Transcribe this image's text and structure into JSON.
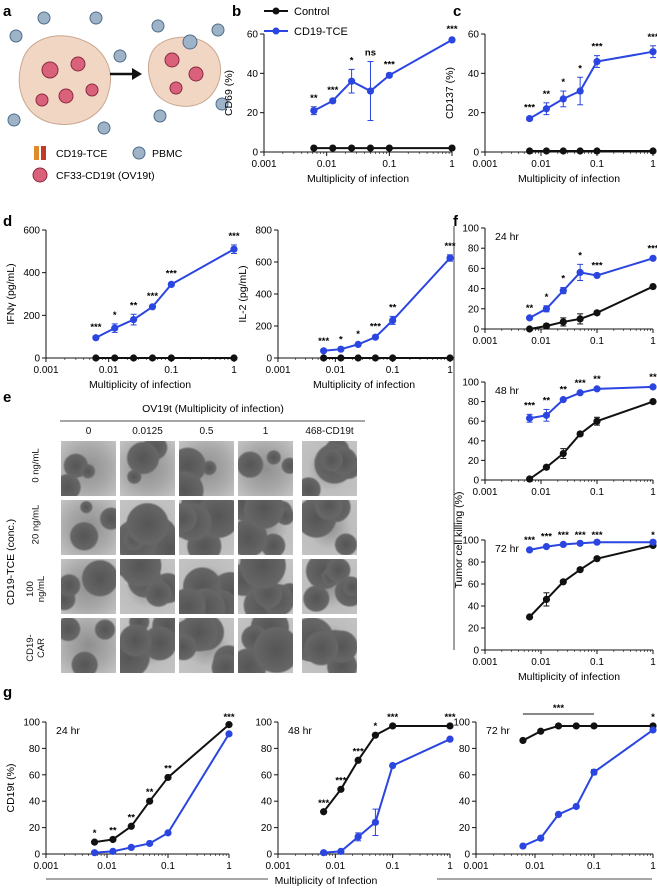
{
  "colors": {
    "control": "#111111",
    "tce": "#2a45e0",
    "axis": "#111111",
    "cell": "#f2d6c4"
  },
  "panel_labels": {
    "a": "a",
    "b": "b",
    "c": "c",
    "d": "d",
    "e": "e",
    "f": "f",
    "g": "g"
  },
  "schematic": {
    "legend": [
      {
        "icon": "bispecific-antibody-icon",
        "label": "CD19-TCE"
      },
      {
        "icon": "pbmc-icon",
        "label": "PBMC"
      },
      {
        "icon": "virus-icon",
        "label": "CF33-CD19t (OV19t)"
      }
    ]
  },
  "legend": {
    "control": "Control",
    "tce": "CD19-TCE"
  },
  "micrographs": {
    "title": "OV19t (Multiplicity of infection)",
    "columns": [
      "0",
      "0.0125",
      "0.5",
      "1",
      "468-CD19t"
    ],
    "rows": [
      "0 ng/mL",
      "20 ng/mL",
      "100 ng/mL",
      "CD19-\nCAR"
    ],
    "row_group_label": "CD19-TCE (conc.)"
  },
  "shared_labels": {
    "f_ylabel": "Tumor cell killing (%)",
    "g_xlabel": "Multiplicity of Infection"
  },
  "chart_data": [
    {
      "id": "b",
      "type": "line",
      "xscale": "log",
      "xlim": [
        0.001,
        1
      ],
      "ylim": [
        0,
        60
      ],
      "xticks": [
        "0.001",
        "0.01",
        "0.1",
        "1"
      ],
      "yticks": [
        0,
        20,
        40,
        60
      ],
      "xlabel": "Multiplicity of infection",
      "ylabel": "CD69 (%)",
      "x": [
        0.00625,
        0.0125,
        0.025,
        0.05,
        0.1,
        1
      ],
      "series": [
        {
          "name": "Control",
          "values": [
            2,
            2,
            2,
            2,
            2,
            2
          ],
          "err": [
            0,
            0,
            0,
            0,
            0,
            0
          ]
        },
        {
          "name": "CD19-TCE",
          "values": [
            21,
            26,
            36,
            31,
            39,
            57
          ],
          "err": [
            2,
            1,
            6,
            15,
            1,
            1
          ]
        }
      ],
      "annotations": [
        "**",
        "***",
        "*",
        "ns",
        "***",
        "***"
      ]
    },
    {
      "id": "c",
      "type": "line",
      "xscale": "log",
      "xlim": [
        0.001,
        1
      ],
      "ylim": [
        0,
        60
      ],
      "xticks": [
        "0.001",
        "0.01",
        "0.1",
        "1"
      ],
      "yticks": [
        0,
        20,
        40,
        60
      ],
      "xlabel": "Multiplicity of infection",
      "ylabel": "CD137 (%)",
      "x": [
        0.00625,
        0.0125,
        0.025,
        0.05,
        0.1,
        1
      ],
      "series": [
        {
          "name": "Control",
          "values": [
            0.5,
            0.5,
            0.5,
            0.5,
            0.5,
            0.5
          ],
          "err": [
            0,
            0,
            0,
            0,
            0,
            0
          ]
        },
        {
          "name": "CD19-TCE",
          "values": [
            17,
            22,
            27,
            31,
            46,
            51
          ],
          "err": [
            1,
            3,
            4,
            7,
            3,
            3
          ]
        }
      ],
      "annotations": [
        "***",
        "**",
        "*",
        "*",
        "***",
        "***"
      ]
    },
    {
      "id": "d1",
      "type": "line",
      "xscale": "log",
      "xlim": [
        0.001,
        1
      ],
      "ylim": [
        0,
        600
      ],
      "xticks": [
        "0.001",
        "0.01",
        "0.1",
        "1"
      ],
      "yticks": [
        0,
        200,
        400,
        600
      ],
      "xlabel": "Multiplicity of infection",
      "ylabel": "IFNγ (pg/mL)",
      "x": [
        0.00625,
        0.0125,
        0.025,
        0.05,
        0.1,
        1
      ],
      "series": [
        {
          "name": "Control",
          "values": [
            0,
            0,
            0,
            0,
            0,
            0
          ],
          "err": [
            0,
            0,
            0,
            0,
            0,
            0
          ]
        },
        {
          "name": "CD19-TCE",
          "values": [
            95,
            140,
            180,
            240,
            345,
            510
          ],
          "err": [
            8,
            20,
            25,
            8,
            8,
            20
          ]
        }
      ],
      "annotations": [
        "***",
        "*",
        "**",
        "***",
        "***",
        "***"
      ]
    },
    {
      "id": "d2",
      "type": "line",
      "xscale": "log",
      "xlim": [
        0.001,
        1
      ],
      "ylim": [
        0,
        800
      ],
      "xticks": [
        "0.001",
        "0.01",
        "0.1",
        "1"
      ],
      "yticks": [
        0,
        200,
        400,
        600,
        800
      ],
      "xlabel": "Multiplicity of infection",
      "ylabel": "IL-2 (pg/mL)",
      "x": [
        0.00625,
        0.0125,
        0.025,
        0.05,
        0.1,
        1
      ],
      "series": [
        {
          "name": "Control",
          "values": [
            0,
            0,
            0,
            0,
            0,
            0
          ],
          "err": [
            0,
            0,
            0,
            0,
            0,
            0
          ]
        },
        {
          "name": "CD19-TCE",
          "values": [
            45,
            55,
            85,
            130,
            235,
            625
          ],
          "err": [
            5,
            5,
            8,
            10,
            25,
            20
          ]
        }
      ],
      "annotations": [
        "***",
        "*",
        "*",
        "***",
        "**",
        "***"
      ]
    },
    {
      "id": "f1",
      "type": "line",
      "xscale": "log",
      "xlim": [
        0.001,
        1
      ],
      "ylim": [
        0,
        100
      ],
      "xticks": [
        "0.001",
        "0.01",
        "0.1",
        "1"
      ],
      "yticks": [
        0,
        20,
        40,
        60,
        80,
        100
      ],
      "title": "24 hr",
      "xlabel": "",
      "ylabel": "",
      "x": [
        0.00625,
        0.0125,
        0.025,
        0.05,
        0.1,
        1
      ],
      "series": [
        {
          "name": "Control",
          "values": [
            0,
            3,
            7,
            10,
            16,
            42
          ],
          "err": [
            0,
            2,
            4,
            5,
            1,
            1
          ]
        },
        {
          "name": "CD19-TCE",
          "values": [
            11,
            20,
            38,
            56,
            53,
            70
          ],
          "err": [
            1,
            3,
            3,
            8,
            1,
            1
          ]
        }
      ],
      "annotations": [
        "**",
        "*",
        "*",
        "*",
        "***",
        "***"
      ]
    },
    {
      "id": "f2",
      "type": "line",
      "xscale": "log",
      "xlim": [
        0.001,
        1
      ],
      "ylim": [
        0,
        100
      ],
      "xticks": [
        "0.001",
        "0.01",
        "0.1",
        "1"
      ],
      "yticks": [
        0,
        20,
        40,
        60,
        80,
        100
      ],
      "title": "48 hr",
      "xlabel": "",
      "ylabel": "",
      "x": [
        0.00625,
        0.0125,
        0.025,
        0.05,
        0.1,
        1
      ],
      "series": [
        {
          "name": "Control",
          "values": [
            1,
            13,
            27,
            47,
            60,
            80
          ],
          "err": [
            0,
            2,
            5,
            2,
            4,
            1
          ]
        },
        {
          "name": "CD19-TCE",
          "values": [
            63,
            66,
            82,
            89,
            93,
            95
          ],
          "err": [
            4,
            6,
            1,
            1,
            1,
            1
          ]
        }
      ],
      "annotations": [
        "***",
        "**",
        "**",
        "***",
        "**",
        "**"
      ]
    },
    {
      "id": "f3",
      "type": "line",
      "xscale": "log",
      "xlim": [
        0.001,
        1
      ],
      "ylim": [
        0,
        100
      ],
      "xticks": [
        "0.001",
        "0.01",
        "0.1",
        "1"
      ],
      "yticks": [
        0,
        20,
        40,
        60,
        80,
        100
      ],
      "title": "72 hr",
      "xlabel": "Multiplicity of infection",
      "ylabel": "",
      "x": [
        0.00625,
        0.0125,
        0.025,
        0.05,
        0.1,
        1
      ],
      "series": [
        {
          "name": "Control",
          "values": [
            30,
            46,
            62,
            73,
            83,
            95
          ],
          "err": [
            0,
            6,
            1,
            1,
            1,
            1
          ]
        },
        {
          "name": "CD19-TCE",
          "values": [
            91,
            94,
            96,
            97,
            98,
            98
          ],
          "err": [
            1,
            1,
            1,
            1,
            1,
            1
          ]
        }
      ],
      "annotations": [
        "***",
        "***",
        "***",
        "***",
        "***",
        "*"
      ]
    },
    {
      "id": "g1",
      "type": "line",
      "xscale": "log",
      "xlim": [
        0.001,
        1
      ],
      "ylim": [
        0,
        100
      ],
      "xticks": [
        "0.001",
        "0.01",
        "0.1",
        "1"
      ],
      "yticks": [
        0,
        20,
        40,
        60,
        80,
        100
      ],
      "title": "24 hr",
      "xlabel": "",
      "ylabel": "CD19t (%)",
      "x": [
        0.00625,
        0.0125,
        0.025,
        0.05,
        0.1,
        1
      ],
      "series": [
        {
          "name": "Control",
          "values": [
            9,
            11,
            21,
            40,
            58,
            98
          ],
          "err": [
            0,
            0,
            0,
            0,
            0,
            0
          ]
        },
        {
          "name": "CD19-TCE",
          "values": [
            1,
            2,
            5,
            8,
            16,
            91
          ],
          "err": [
            0,
            0,
            0,
            0,
            0,
            0
          ]
        }
      ],
      "annotations": [
        "*",
        "**",
        "**",
        "**",
        "**",
        "***"
      ]
    },
    {
      "id": "g2",
      "type": "line",
      "xscale": "log",
      "xlim": [
        0.001,
        1
      ],
      "ylim": [
        0,
        100
      ],
      "xticks": [
        "0.001",
        "0.01",
        "0.1",
        "1"
      ],
      "yticks": [
        0,
        20,
        40,
        60,
        80,
        100
      ],
      "title": "48 hr",
      "xlabel": "",
      "ylabel": "",
      "x": [
        0.00625,
        0.0125,
        0.025,
        0.05,
        0.1,
        1
      ],
      "series": [
        {
          "name": "Control",
          "values": [
            32,
            49,
            71,
            90,
            97,
            97
          ],
          "err": [
            0,
            0,
            0,
            0,
            0,
            0
          ]
        },
        {
          "name": "CD19-TCE",
          "values": [
            1,
            2,
            13,
            24,
            67,
            87
          ],
          "err": [
            0,
            0,
            3,
            10,
            0,
            0
          ]
        }
      ],
      "annotations": [
        "***",
        "***",
        "***",
        "*",
        "***",
        "***"
      ]
    },
    {
      "id": "g3",
      "type": "line",
      "xscale": "log",
      "xlim": [
        0.001,
        1
      ],
      "ylim": [
        0,
        100
      ],
      "xticks": [
        "0.001",
        "0.01",
        "0.1",
        "1"
      ],
      "yticks": [
        0,
        20,
        40,
        60,
        80,
        100
      ],
      "title": "72 hr",
      "xlabel": "",
      "ylabel": "",
      "x": [
        0.00625,
        0.0125,
        0.025,
        0.05,
        0.1,
        1
      ],
      "series": [
        {
          "name": "Control",
          "values": [
            86,
            93,
            97,
            97,
            97,
            97
          ],
          "err": [
            0,
            0,
            0,
            0,
            0,
            0
          ]
        },
        {
          "name": "CD19-TCE",
          "values": [
            6,
            12,
            30,
            36,
            62,
            94
          ],
          "err": [
            0,
            0,
            0,
            0,
            2,
            0
          ]
        }
      ],
      "annotations": [
        "",
        "",
        "",
        "",
        "",
        "*"
      ],
      "bracket": {
        "label": "***",
        "from": 0.00625,
        "to": 0.1
      }
    }
  ]
}
